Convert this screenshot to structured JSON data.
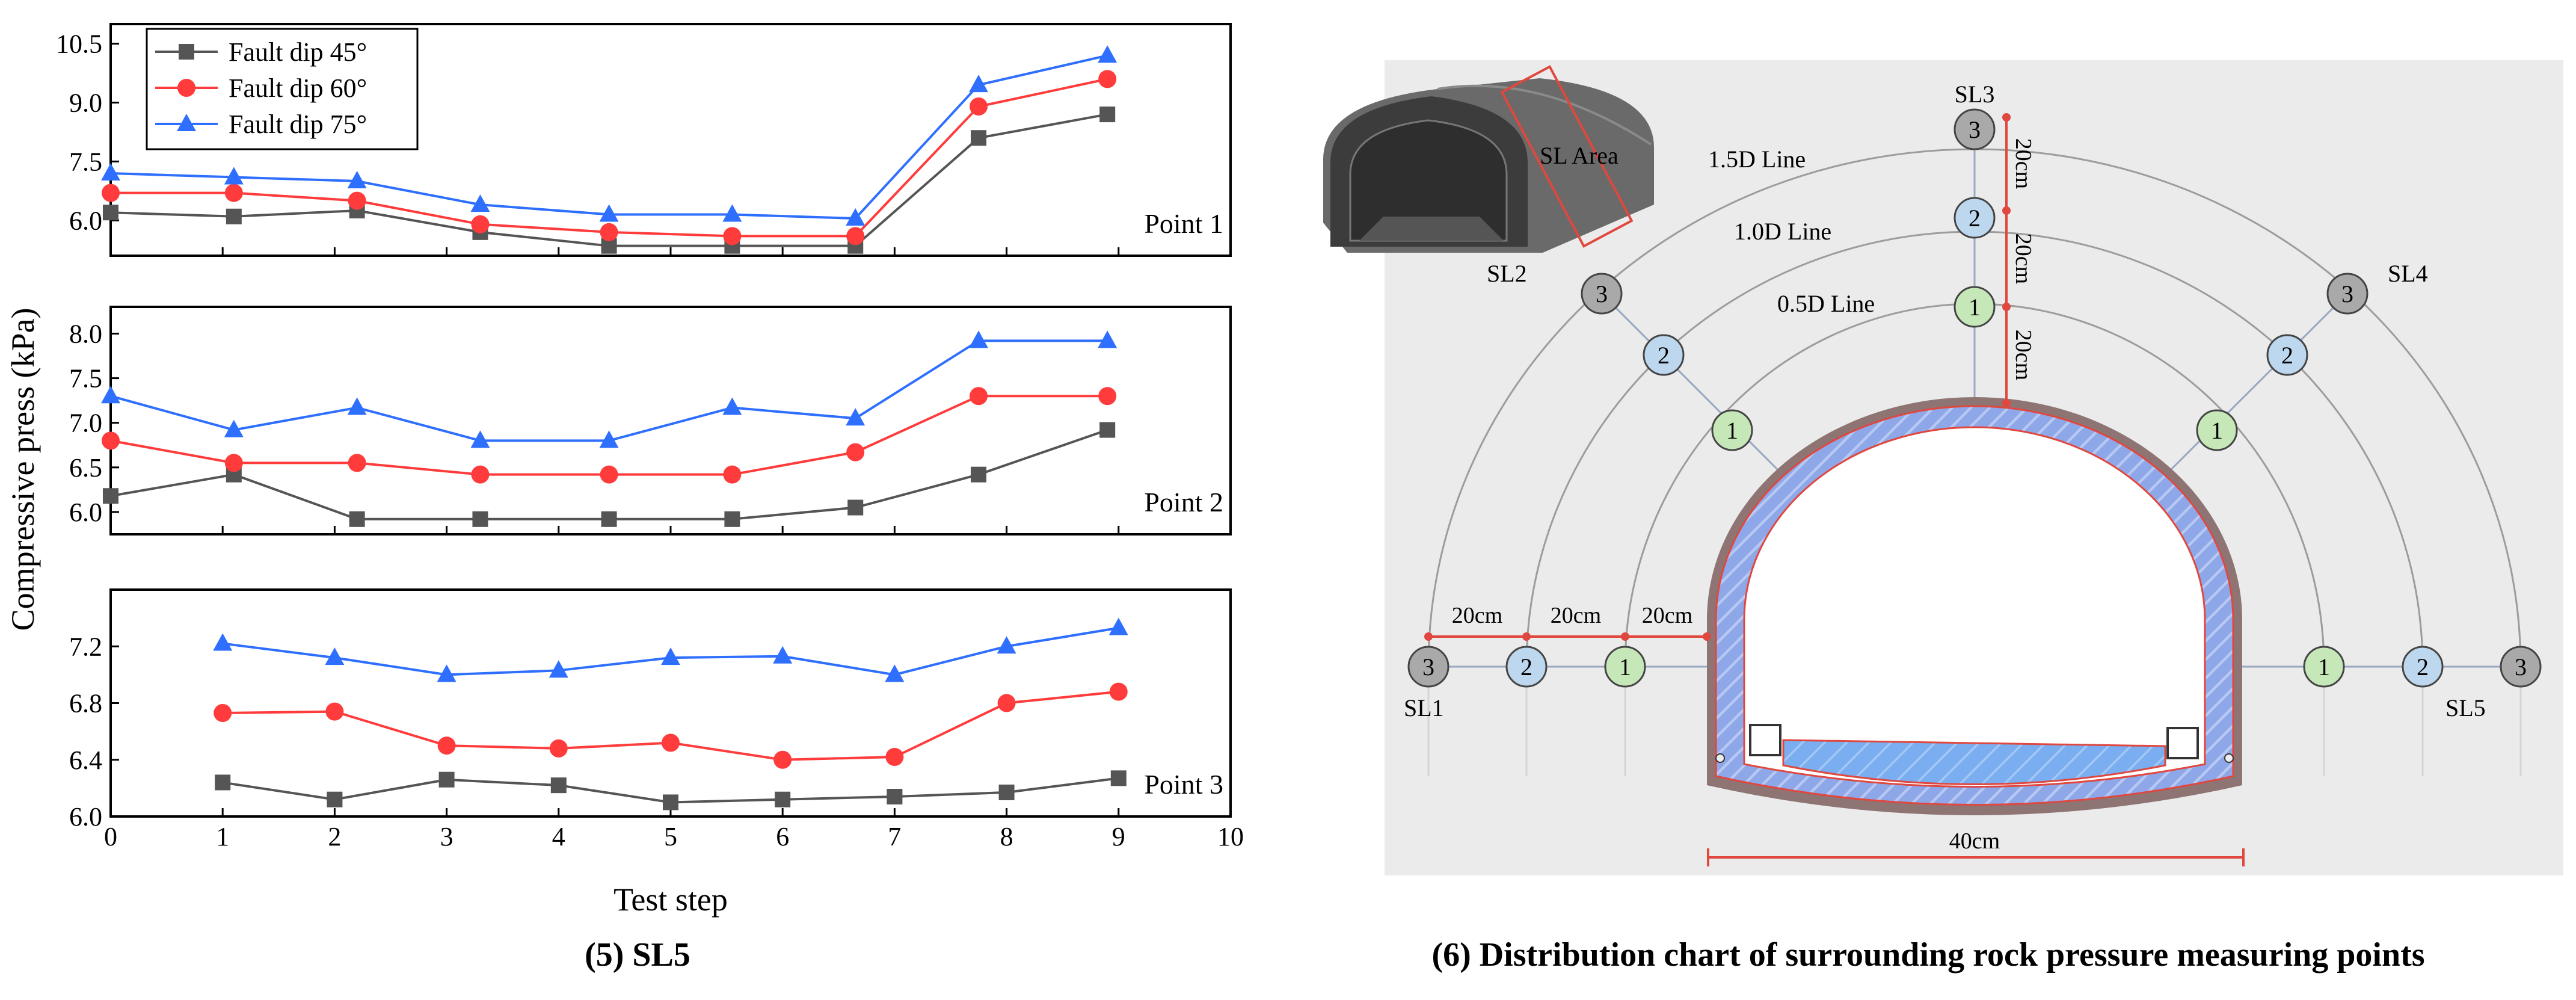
{
  "chart_data": {
    "type": "line",
    "xlabel": "Test step",
    "ylabel": "Compressive press (kPa)",
    "xlim": [
      0,
      10
    ],
    "xticks": [
      "0",
      "1",
      "2",
      "3",
      "4",
      "5",
      "6",
      "7",
      "8",
      "9",
      "10"
    ],
    "legend": {
      "placement": "top-left of Point 1 panel",
      "entries": [
        "Fault dip 45°",
        "Fault dip 60°",
        "Fault dip 75°"
      ]
    },
    "series_styles": [
      {
        "name": "Fault dip 45°",
        "color": "#555555",
        "marker": "square"
      },
      {
        "name": "Fault dip 60°",
        "color": "#ff3b3b",
        "marker": "circle"
      },
      {
        "name": "Fault dip 75°",
        "color": "#2f6fff",
        "marker": "triangle"
      }
    ],
    "panels": [
      {
        "label": "Point 1",
        "ylim": [
          5.1,
          11.0
        ],
        "yticks": [
          "6.0",
          "7.5",
          "9.0",
          "10.5"
        ],
        "ytick_values": [
          6.0,
          7.5,
          9.0,
          10.5
        ],
        "x": [
          0,
          1.1,
          2.2,
          3.3,
          4.45,
          5.55,
          6.65,
          7.75,
          8.9
        ],
        "series": [
          {
            "name": "Fault dip 45°",
            "values": [
              6.2,
              6.1,
              6.25,
              5.7,
              5.35,
              5.35,
              5.35,
              8.1,
              8.7
            ]
          },
          {
            "name": "Fault dip 60°",
            "values": [
              6.7,
              6.7,
              6.5,
              5.9,
              5.7,
              5.6,
              5.6,
              8.9,
              9.6
            ]
          },
          {
            "name": "Fault dip 75°",
            "values": [
              7.2,
              7.1,
              7.0,
              6.4,
              6.15,
              6.15,
              6.05,
              9.45,
              10.2
            ]
          }
        ]
      },
      {
        "label": "Point 2",
        "ylim": [
          5.75,
          8.3
        ],
        "yticks": [
          "6.0",
          "6.5",
          "7.0",
          "7.5",
          "8.0"
        ],
        "ytick_values": [
          6.0,
          6.5,
          7.0,
          7.5,
          8.0
        ],
        "x": [
          0,
          1.1,
          2.2,
          3.3,
          4.45,
          5.55,
          6.65,
          7.75,
          8.9
        ],
        "series": [
          {
            "name": "Fault dip 45°",
            "values": [
              6.18,
              6.42,
              5.92,
              5.92,
              5.92,
              5.92,
              6.05,
              6.42,
              6.92
            ]
          },
          {
            "name": "Fault dip 60°",
            "values": [
              6.8,
              6.55,
              6.55,
              6.42,
              6.42,
              6.42,
              6.67,
              7.3,
              7.3
            ]
          },
          {
            "name": "Fault dip 75°",
            "values": [
              7.3,
              6.92,
              7.17,
              6.8,
              6.8,
              7.17,
              7.05,
              7.92,
              7.92
            ]
          }
        ]
      },
      {
        "label": "Point 3",
        "ylim": [
          6.0,
          7.6
        ],
        "yticks": [
          "6.0",
          "6.4",
          "6.8",
          "7.2"
        ],
        "ytick_values": [
          6.0,
          6.4,
          6.8,
          7.2
        ],
        "x": [
          1.0,
          2.0,
          3.0,
          4.0,
          5.0,
          6.0,
          7.0,
          8.0,
          9.0
        ],
        "series": [
          {
            "name": "Fault dip 45°",
            "values": [
              6.24,
              6.12,
              6.26,
              6.22,
              6.1,
              6.12,
              6.14,
              6.17,
              6.27
            ]
          },
          {
            "name": "Fault dip 60°",
            "values": [
              6.73,
              6.74,
              6.5,
              6.48,
              6.52,
              6.4,
              6.42,
              6.8,
              6.88
            ]
          },
          {
            "name": "Fault dip 75°",
            "values": [
              7.22,
              7.12,
              7.0,
              7.03,
              7.12,
              7.13,
              7.0,
              7.2,
              7.33
            ]
          }
        ]
      }
    ]
  },
  "captions": {
    "left": "(5) SL5",
    "right": "(6) Distribution chart of surrounding rock pressure measuring points"
  },
  "diagram": {
    "line_labels": [
      "1.5D Line",
      "1.0D Line",
      "0.5D Line"
    ],
    "sl_area_label": "SL Area",
    "survey_lines": [
      "SL1",
      "SL2",
      "SL3",
      "SL4",
      "SL5"
    ],
    "point_numbers": [
      "1",
      "2",
      "3"
    ],
    "spacing_label": "20cm",
    "width_label": "40cm",
    "colors": {
      "background": "#ebebeb",
      "point1": "#c6e7b8",
      "point2": "#bdd7ee",
      "point3": "#a9a9a9",
      "lining": "#8e7574",
      "lining_hatch": "#8ea7e8",
      "floor_water": "#7aaef0",
      "dimension": "#e0473e"
    }
  }
}
